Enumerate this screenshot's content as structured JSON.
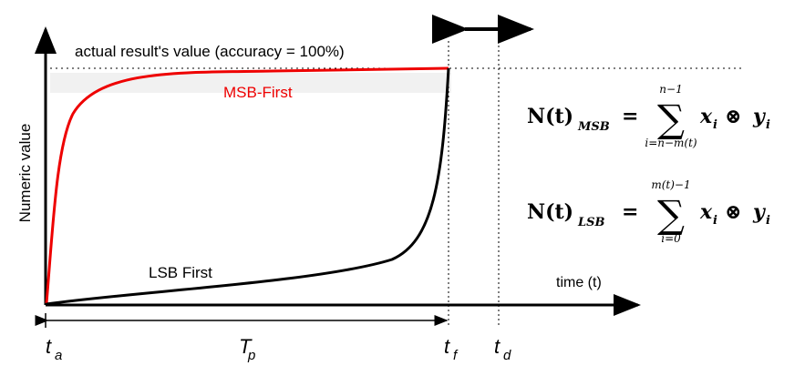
{
  "labels": {
    "accuracy_line": "actual result's value (accuracy = 100%)",
    "msb_curve": "MSB-First",
    "lsb_curve": "LSB First",
    "y_axis": "Numeric value",
    "x_axis": "time (t)"
  },
  "time_marks": [
    {
      "base": "t",
      "sub": "a"
    },
    {
      "base": "T",
      "sub": "p"
    },
    {
      "base": "t",
      "sub": "f"
    },
    {
      "base": "t",
      "sub": "d"
    }
  ],
  "formulas": [
    {
      "lhs": "N(t)",
      "lhs_sub": "MSB",
      "eq": "=",
      "sum": "∑",
      "upper": "n−1",
      "lower": "i=n−m(t)",
      "x": "x",
      "x_sub": "i",
      "op": "⊗",
      "y": "y",
      "y_sub": "i"
    },
    {
      "lhs": "N(t)",
      "lhs_sub": "LSB",
      "eq": "=",
      "sum": "∑",
      "upper": "m(t)−1",
      "lower": "i=0",
      "x": "x",
      "x_sub": "i",
      "op": "⊗",
      "y": "y",
      "y_sub": "i"
    }
  ]
}
